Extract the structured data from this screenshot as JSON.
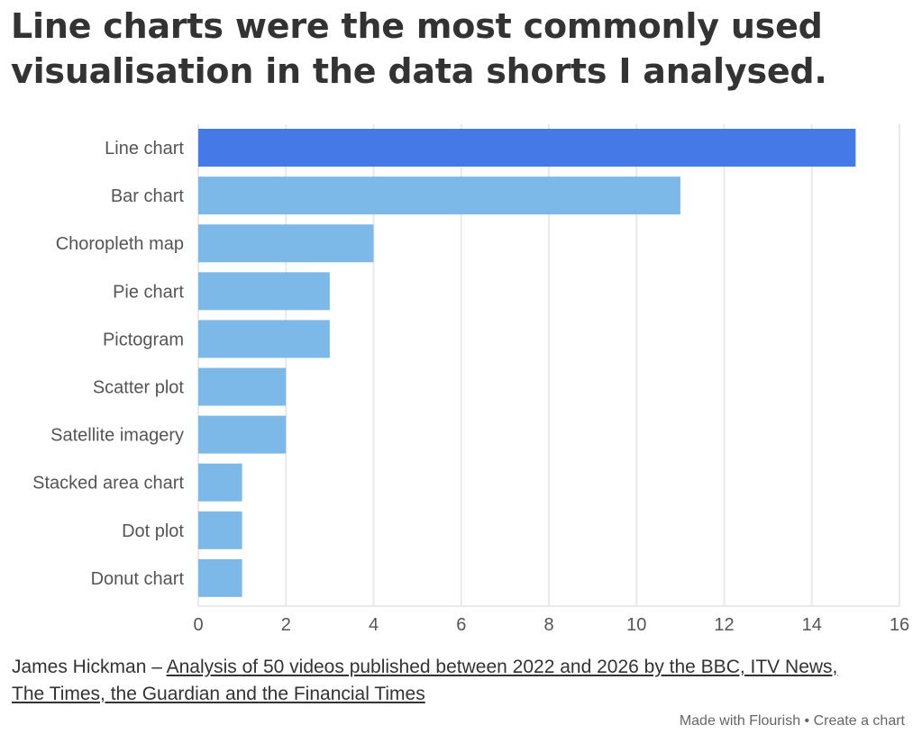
{
  "title": "Line charts were the most commonly used visualisation in the data shorts I analysed.",
  "footer": {
    "author": "James Hickman",
    "separator": " – ",
    "source_line1": "Analysis of 50 videos published between 2022 and 2026 by the BBC, ITV News,",
    "source_line2": "The Times, the Guardian and the Financial Times"
  },
  "credit": {
    "made_with": "Made with Flourish",
    "dot": "•",
    "create": "Create a chart"
  },
  "colors": {
    "highlight": "#4479e7",
    "bar": "#7db9e8",
    "grid": "#e9e9e9",
    "text": "#333333",
    "axis_text": "#555555"
  },
  "chart_data": {
    "type": "bar",
    "orientation": "horizontal",
    "categories": [
      "Line chart",
      "Bar chart",
      "Choropleth map",
      "Pie chart",
      "Pictogram",
      "Scatter plot",
      "Satellite imagery",
      "Stacked area chart",
      "Dot plot",
      "Donut chart"
    ],
    "values": [
      15,
      11,
      4,
      3,
      3,
      2,
      2,
      1,
      1,
      1
    ],
    "highlighted": [
      "Line chart"
    ],
    "xlim": [
      0,
      16
    ],
    "xticks": [
      0,
      2,
      4,
      6,
      8,
      10,
      12,
      14,
      16
    ],
    "grid": true
  }
}
